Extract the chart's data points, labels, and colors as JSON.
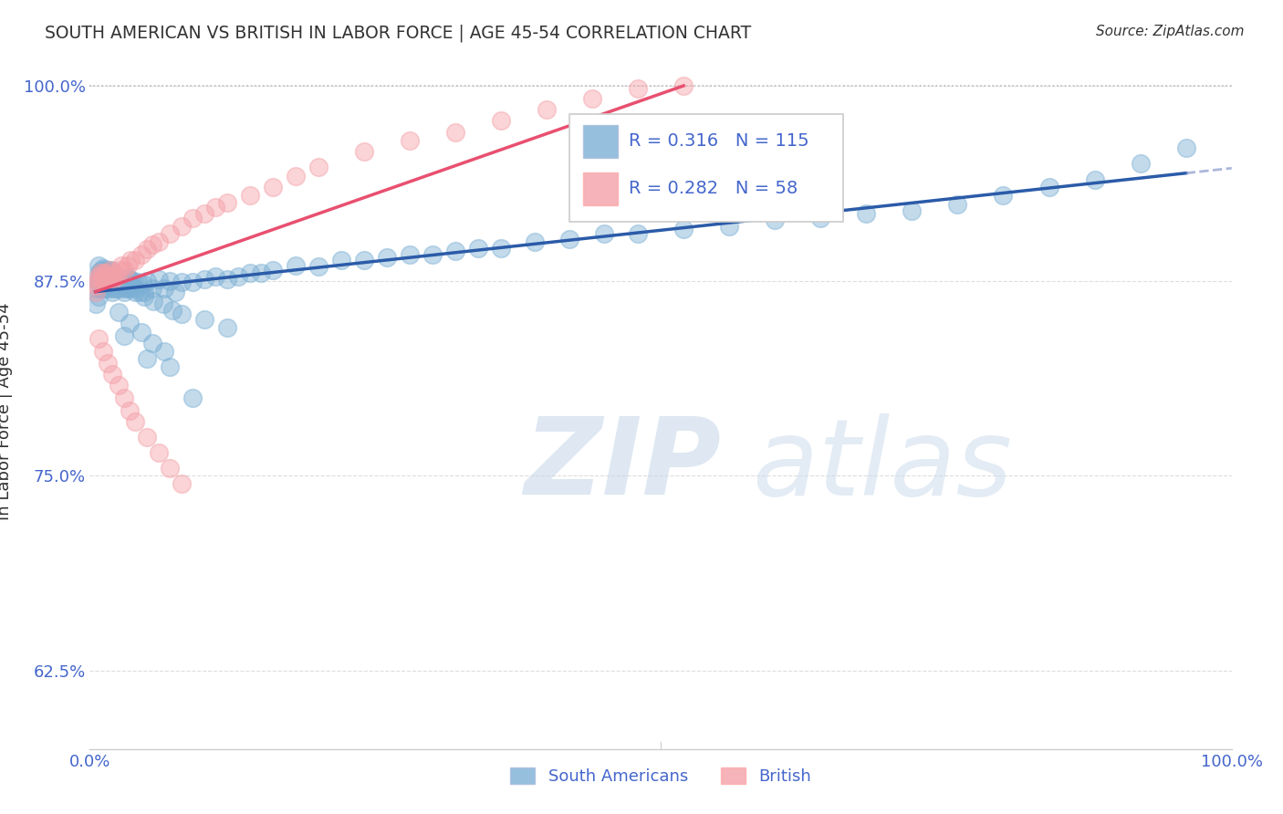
{
  "title": "SOUTH AMERICAN VS BRITISH IN LABOR FORCE | AGE 45-54 CORRELATION CHART",
  "source_text": "Source: ZipAtlas.com",
  "ylabel": "In Labor Force | Age 45-54",
  "xlim": [
    0.0,
    1.0
  ],
  "ylim": [
    0.575,
    1.008
  ],
  "x_ticks": [
    0.0,
    1.0
  ],
  "x_tick_labels": [
    "0.0%",
    "100.0%"
  ],
  "y_ticks": [
    0.625,
    0.75,
    0.875,
    1.0
  ],
  "R1": 0.316,
  "N1": 115,
  "R2": 0.282,
  "N2": 58,
  "blue_color": "#7BAFD4",
  "pink_color": "#F4A0A8",
  "line_blue": "#2B5BA8",
  "line_pink": "#E85070",
  "title_color": "#333333",
  "label_color": "#4466CC",
  "grid_color": "#DDDDDD",
  "watermark_color": "#C8D8EA",
  "sa_x": [
    0.005,
    0.006,
    0.007,
    0.008,
    0.008,
    0.009,
    0.009,
    0.01,
    0.01,
    0.011,
    0.011,
    0.012,
    0.012,
    0.013,
    0.013,
    0.014,
    0.014,
    0.015,
    0.015,
    0.016,
    0.016,
    0.017,
    0.017,
    0.018,
    0.018,
    0.019,
    0.019,
    0.02,
    0.02,
    0.021,
    0.021,
    0.022,
    0.023,
    0.024,
    0.025,
    0.026,
    0.027,
    0.028,
    0.029,
    0.03,
    0.031,
    0.032,
    0.033,
    0.034,
    0.035,
    0.036,
    0.038,
    0.04,
    0.042,
    0.044,
    0.046,
    0.048,
    0.05,
    0.055,
    0.06,
    0.065,
    0.07,
    0.075,
    0.08,
    0.09,
    0.1,
    0.11,
    0.12,
    0.13,
    0.14,
    0.15,
    0.16,
    0.18,
    0.2,
    0.22,
    0.24,
    0.26,
    0.28,
    0.3,
    0.32,
    0.34,
    0.36,
    0.39,
    0.42,
    0.45,
    0.48,
    0.52,
    0.56,
    0.6,
    0.64,
    0.68,
    0.72,
    0.76,
    0.8,
    0.84,
    0.88,
    0.92,
    0.96,
    0.03,
    0.05,
    0.07,
    0.09,
    0.025,
    0.035,
    0.045,
    0.055,
    0.065,
    0.008,
    0.012,
    0.016,
    0.02,
    0.024,
    0.028,
    0.032,
    0.04,
    0.048,
    0.056,
    0.064,
    0.072,
    0.08,
    0.1,
    0.12
  ],
  "sa_y": [
    0.86,
    0.87,
    0.875,
    0.88,
    0.865,
    0.87,
    0.88,
    0.875,
    0.882,
    0.87,
    0.878,
    0.872,
    0.88,
    0.875,
    0.882,
    0.87,
    0.876,
    0.872,
    0.88,
    0.875,
    0.882,
    0.87,
    0.876,
    0.873,
    0.88,
    0.875,
    0.882,
    0.868,
    0.876,
    0.87,
    0.875,
    0.872,
    0.877,
    0.87,
    0.876,
    0.872,
    0.875,
    0.87,
    0.876,
    0.868,
    0.875,
    0.872,
    0.877,
    0.87,
    0.876,
    0.872,
    0.875,
    0.87,
    0.874,
    0.868,
    0.873,
    0.868,
    0.875,
    0.87,
    0.876,
    0.87,
    0.875,
    0.868,
    0.874,
    0.874,
    0.876,
    0.878,
    0.876,
    0.878,
    0.88,
    0.88,
    0.882,
    0.885,
    0.884,
    0.888,
    0.888,
    0.89,
    0.892,
    0.892,
    0.894,
    0.896,
    0.896,
    0.9,
    0.902,
    0.905,
    0.905,
    0.908,
    0.91,
    0.914,
    0.915,
    0.918,
    0.92,
    0.924,
    0.93,
    0.935,
    0.94,
    0.95,
    0.96,
    0.84,
    0.825,
    0.82,
    0.8,
    0.855,
    0.848,
    0.842,
    0.835,
    0.83,
    0.885,
    0.883,
    0.88,
    0.878,
    0.875,
    0.873,
    0.87,
    0.868,
    0.865,
    0.862,
    0.86,
    0.856,
    0.854,
    0.85,
    0.845
  ],
  "br_x": [
    0.005,
    0.006,
    0.007,
    0.008,
    0.009,
    0.01,
    0.011,
    0.012,
    0.013,
    0.014,
    0.015,
    0.016,
    0.017,
    0.018,
    0.019,
    0.02,
    0.022,
    0.024,
    0.026,
    0.028,
    0.03,
    0.033,
    0.036,
    0.04,
    0.045,
    0.05,
    0.055,
    0.06,
    0.07,
    0.08,
    0.09,
    0.1,
    0.11,
    0.12,
    0.14,
    0.16,
    0.18,
    0.2,
    0.24,
    0.28,
    0.32,
    0.36,
    0.4,
    0.44,
    0.48,
    0.52,
    0.008,
    0.012,
    0.016,
    0.02,
    0.025,
    0.03,
    0.035,
    0.04,
    0.05,
    0.06,
    0.07,
    0.08
  ],
  "br_y": [
    0.868,
    0.872,
    0.875,
    0.878,
    0.88,
    0.875,
    0.878,
    0.88,
    0.875,
    0.878,
    0.88,
    0.875,
    0.878,
    0.882,
    0.875,
    0.878,
    0.88,
    0.878,
    0.882,
    0.885,
    0.882,
    0.885,
    0.888,
    0.888,
    0.892,
    0.895,
    0.898,
    0.9,
    0.905,
    0.91,
    0.915,
    0.918,
    0.922,
    0.925,
    0.93,
    0.935,
    0.942,
    0.948,
    0.958,
    0.965,
    0.97,
    0.978,
    0.985,
    0.992,
    0.998,
    1.0,
    0.838,
    0.83,
    0.822,
    0.815,
    0.808,
    0.8,
    0.792,
    0.785,
    0.775,
    0.765,
    0.755,
    0.745
  ]
}
